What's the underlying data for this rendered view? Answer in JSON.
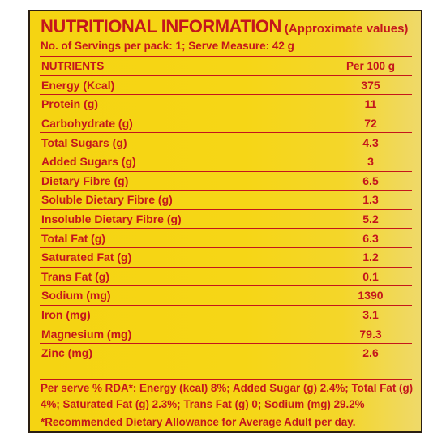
{
  "label": {
    "title": "NUTRITIONAL INFORMATION",
    "subtitle": "(Approximate values)",
    "servings": "No. of Servings per pack: 1; Serve Measure: 42 g",
    "header": {
      "name": "NUTRIENTS",
      "value": "Per 100 g"
    },
    "rows": [
      {
        "name": "Energy (Kcal)",
        "value": "375"
      },
      {
        "name": "Protein (g)",
        "value": "11"
      },
      {
        "name": "Carbohydrate (g)",
        "value": "72"
      },
      {
        "name": "Total Sugars (g)",
        "value": "4.3"
      },
      {
        "name": "Added Sugars (g)",
        "value": "3"
      },
      {
        "name": "Dietary Fibre (g)",
        "value": "6.5"
      },
      {
        "name": "Soluble Dietary Fibre (g)",
        "value": "1.3"
      },
      {
        "name": "Insoluble Dietary Fibre (g)",
        "value": "5.2"
      },
      {
        "name": "Total Fat (g)",
        "value": "6.3"
      },
      {
        "name": "Saturated Fat (g)",
        "value": "1.2"
      },
      {
        "name": "Trans Fat (g)",
        "value": "0.1"
      },
      {
        "name": "Sodium (mg)",
        "value": "1390"
      },
      {
        "name": "Iron (mg)",
        "value": "3.1"
      },
      {
        "name": "Magnesium (mg)",
        "value": "79.3"
      },
      {
        "name": "Zinc (mg)",
        "value": "2.6"
      }
    ],
    "rda": "Per serve % RDA*: Energy (kcal) 8%; Added Sugar (g) 2.4%; Total Fat (g) 4%; Saturated Fat (g) 2.3%; Trans Fat (g) 0; Sodium (mg) 29.2%",
    "footnote": "*Recommended Dietary Allowance for Average Adult per day."
  },
  "colors": {
    "background": "#f5d412",
    "text": "#c4161c",
    "border": "#2a1e12"
  }
}
